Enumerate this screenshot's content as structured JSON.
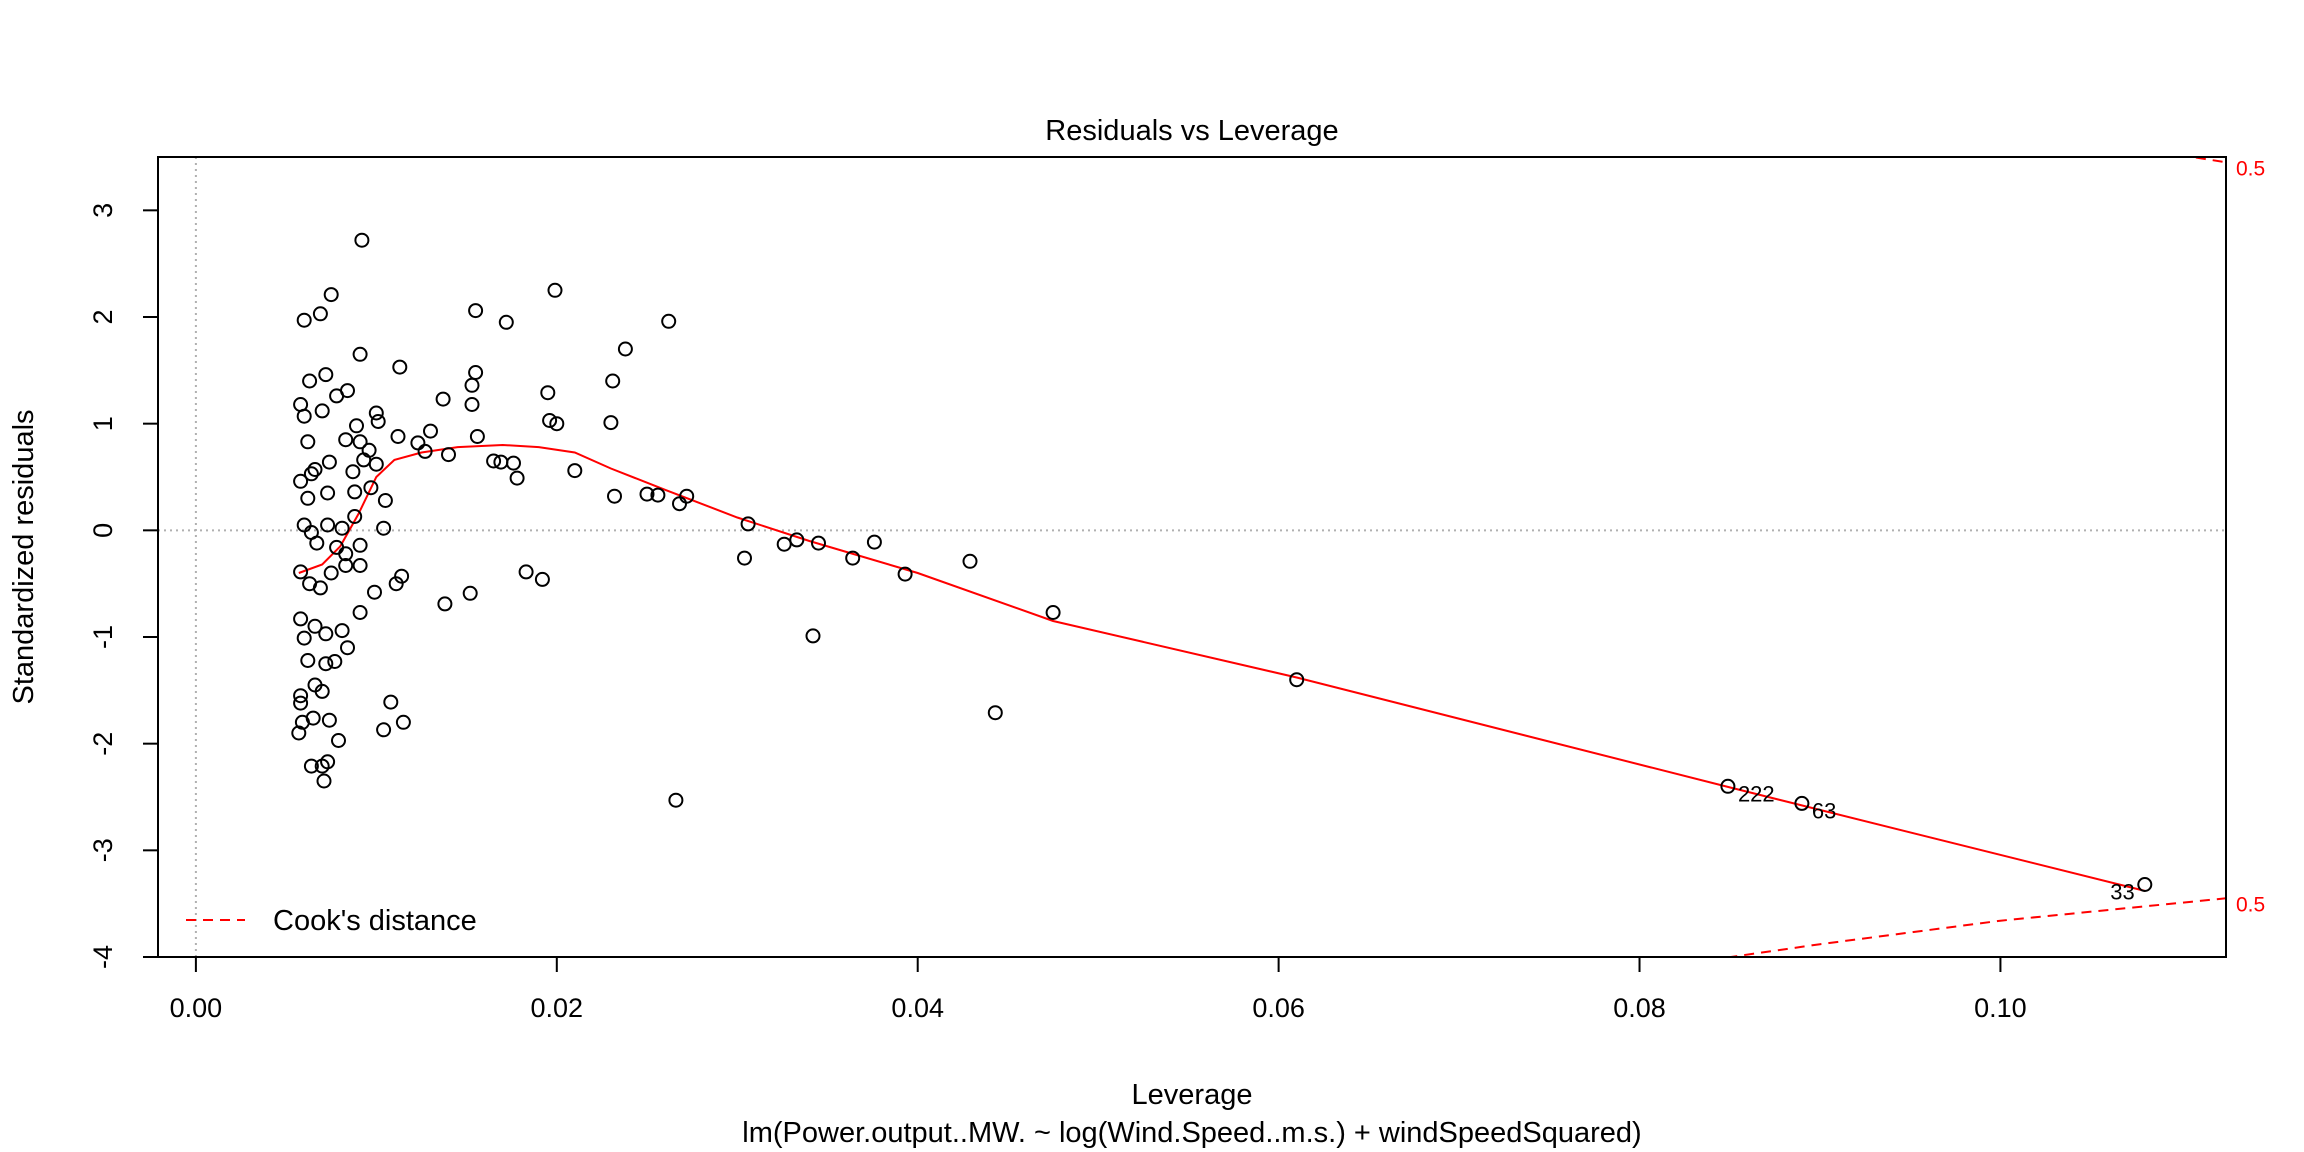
{
  "chart_data": {
    "type": "scatter",
    "title": "Residuals vs Leverage",
    "xlabel": "Leverage",
    "subtitle": "lm(Power.output..MW. ~ log(Wind.Speed..m.s.) + windSpeedSquared)",
    "ylabel": "Standardized residuals",
    "xlim": [
      -0.0021,
      0.1125
    ],
    "ylim": [
      -4.0,
      3.5
    ],
    "x_ticks": [
      0.0,
      0.02,
      0.04,
      0.06,
      0.08,
      0.1
    ],
    "x_tick_labels": [
      "0.00",
      "0.02",
      "0.04",
      "0.06",
      "0.08",
      "0.10"
    ],
    "y_ticks": [
      -4,
      -3,
      -2,
      -1,
      0,
      1,
      2,
      3
    ],
    "y_tick_labels": [
      "-4",
      "-3",
      "-2",
      "-1",
      "0",
      "1",
      "2",
      "3"
    ],
    "reference_lines": {
      "x": 0,
      "y": 0
    },
    "points": [
      [
        0.0092,
        2.72
      ],
      [
        0.0075,
        2.21
      ],
      [
        0.006,
        1.97
      ],
      [
        0.0069,
        2.03
      ],
      [
        0.0155,
        2.06
      ],
      [
        0.0199,
        2.25
      ],
      [
        0.0262,
        1.96
      ],
      [
        0.0172,
        1.95
      ],
      [
        0.0091,
        1.65
      ],
      [
        0.0072,
        1.46
      ],
      [
        0.0113,
        1.53
      ],
      [
        0.0238,
        1.7
      ],
      [
        0.0063,
        1.4
      ],
      [
        0.0155,
        1.48
      ],
      [
        0.0231,
        1.4
      ],
      [
        0.0195,
        1.29
      ],
      [
        0.0153,
        1.18
      ],
      [
        0.0137,
        1.23
      ],
      [
        0.01,
        1.1
      ],
      [
        0.0058,
        1.18
      ],
      [
        0.0084,
        1.31
      ],
      [
        0.0078,
        1.26
      ],
      [
        0.0153,
        1.36
      ],
      [
        0.006,
        1.07
      ],
      [
        0.007,
        1.12
      ],
      [
        0.0089,
        0.98
      ],
      [
        0.0101,
        1.02
      ],
      [
        0.0196,
        1.03
      ],
      [
        0.023,
        1.01
      ],
      [
        0.02,
        1.0
      ],
      [
        0.013,
        0.93
      ],
      [
        0.0112,
        0.88
      ],
      [
        0.0156,
        0.88
      ],
      [
        0.0091,
        0.83
      ],
      [
        0.0083,
        0.85
      ],
      [
        0.0062,
        0.83
      ],
      [
        0.0096,
        0.75
      ],
      [
        0.0123,
        0.82
      ],
      [
        0.0127,
        0.74
      ],
      [
        0.014,
        0.71
      ],
      [
        0.0093,
        0.66
      ],
      [
        0.01,
        0.62
      ],
      [
        0.0087,
        0.55
      ],
      [
        0.0074,
        0.64
      ],
      [
        0.0066,
        0.57
      ],
      [
        0.0064,
        0.53
      ],
      [
        0.0058,
        0.46
      ],
      [
        0.0073,
        0.35
      ],
      [
        0.0088,
        0.36
      ],
      [
        0.0097,
        0.4
      ],
      [
        0.0105,
        0.28
      ],
      [
        0.0165,
        0.65
      ],
      [
        0.0169,
        0.64
      ],
      [
        0.0176,
        0.63
      ],
      [
        0.0178,
        0.49
      ],
      [
        0.021,
        0.56
      ],
      [
        0.0232,
        0.32
      ],
      [
        0.025,
        0.34
      ],
      [
        0.0256,
        0.33
      ],
      [
        0.0268,
        0.25
      ],
      [
        0.0272,
        0.32
      ],
      [
        0.0306,
        0.06
      ],
      [
        0.0062,
        0.3
      ],
      [
        0.0081,
        0.02
      ],
      [
        0.0088,
        0.13
      ],
      [
        0.0104,
        0.02
      ],
      [
        0.006,
        0.05
      ],
      [
        0.0064,
        -0.02
      ],
      [
        0.0073,
        0.05
      ],
      [
        0.0067,
        -0.12
      ],
      [
        0.0078,
        -0.16
      ],
      [
        0.0083,
        -0.22
      ],
      [
        0.0091,
        -0.14
      ],
      [
        0.0304,
        -0.26
      ],
      [
        0.0326,
        -0.13
      ],
      [
        0.0333,
        -0.09
      ],
      [
        0.0345,
        -0.12
      ],
      [
        0.0364,
        -0.26
      ],
      [
        0.0376,
        -0.11
      ],
      [
        0.0393,
        -0.41
      ],
      [
        0.0429,
        -0.29
      ],
      [
        0.0058,
        -0.39
      ],
      [
        0.0063,
        -0.5
      ],
      [
        0.0069,
        -0.54
      ],
      [
        0.0075,
        -0.4
      ],
      [
        0.0083,
        -0.33
      ],
      [
        0.0091,
        -0.33
      ],
      [
        0.0099,
        -0.58
      ],
      [
        0.0111,
        -0.5
      ],
      [
        0.0114,
        -0.43
      ],
      [
        0.0183,
        -0.39
      ],
      [
        0.0192,
        -0.46
      ],
      [
        0.0152,
        -0.59
      ],
      [
        0.0138,
        -0.69
      ],
      [
        0.0091,
        -0.77
      ],
      [
        0.0058,
        -0.83
      ],
      [
        0.0066,
        -0.9
      ],
      [
        0.0072,
        -0.97
      ],
      [
        0.0081,
        -0.94
      ],
      [
        0.006,
        -1.01
      ],
      [
        0.0084,
        -1.1
      ],
      [
        0.0062,
        -1.22
      ],
      [
        0.0072,
        -1.25
      ],
      [
        0.0077,
        -1.23
      ],
      [
        0.0066,
        -1.45
      ],
      [
        0.007,
        -1.51
      ],
      [
        0.0058,
        -1.55
      ],
      [
        0.0058,
        -1.62
      ],
      [
        0.0059,
        -1.8
      ],
      [
        0.0057,
        -1.9
      ],
      [
        0.0065,
        -1.76
      ],
      [
        0.0074,
        -1.78
      ],
      [
        0.0079,
        -1.97
      ],
      [
        0.0104,
        -1.87
      ],
      [
        0.0108,
        -1.61
      ],
      [
        0.0115,
        -1.8
      ],
      [
        0.0064,
        -2.21
      ],
      [
        0.007,
        -2.21
      ],
      [
        0.0073,
        -2.17
      ],
      [
        0.0071,
        -2.35
      ],
      [
        0.0342,
        -0.99
      ],
      [
        0.0475,
        -0.77
      ],
      [
        0.0443,
        -1.71
      ],
      [
        0.0266,
        -2.53
      ],
      [
        0.061,
        -1.4
      ],
      [
        0.0849,
        -2.4
      ],
      [
        0.089,
        -2.56
      ],
      [
        0.108,
        -3.32
      ]
    ],
    "point_labels": [
      {
        "text": "222",
        "x": 0.0849,
        "y": -2.4
      },
      {
        "text": "63",
        "x": 0.089,
        "y": -2.56
      },
      {
        "text": "33",
        "x": 0.108,
        "y": -3.32
      }
    ],
    "smoother": {
      "color": "#ff0000",
      "points": [
        [
          0.0057,
          -0.4
        ],
        [
          0.007,
          -0.32
        ],
        [
          0.008,
          -0.15
        ],
        [
          0.009,
          0.15
        ],
        [
          0.01,
          0.5
        ],
        [
          0.011,
          0.66
        ],
        [
          0.0125,
          0.73
        ],
        [
          0.0145,
          0.78
        ],
        [
          0.017,
          0.8
        ],
        [
          0.019,
          0.78
        ],
        [
          0.021,
          0.73
        ],
        [
          0.023,
          0.58
        ],
        [
          0.026,
          0.38
        ],
        [
          0.03,
          0.12
        ],
        [
          0.034,
          -0.1
        ],
        [
          0.04,
          -0.4
        ],
        [
          0.0475,
          -0.85
        ],
        [
          0.061,
          -1.38
        ],
        [
          0.085,
          -2.41
        ],
        [
          0.108,
          -3.38
        ]
      ]
    },
    "cooks_distance": {
      "color": "#ff0000",
      "level_label": "0.5",
      "upper": [
        [
          0.1099,
          3.52
        ],
        [
          0.1125,
          3.45
        ]
      ],
      "lower": [
        [
          0.083,
          -4.05
        ],
        [
          0.09,
          -3.88
        ],
        [
          0.1,
          -3.66
        ],
        [
          0.1125,
          -3.45
        ]
      ],
      "upper_label_y": 3.4,
      "lower_label_y": -3.5
    },
    "legend": {
      "position": "bottom-left",
      "entries": [
        {
          "label": "Cook's distance",
          "style": "dashed",
          "color": "#ff0000"
        }
      ]
    }
  }
}
